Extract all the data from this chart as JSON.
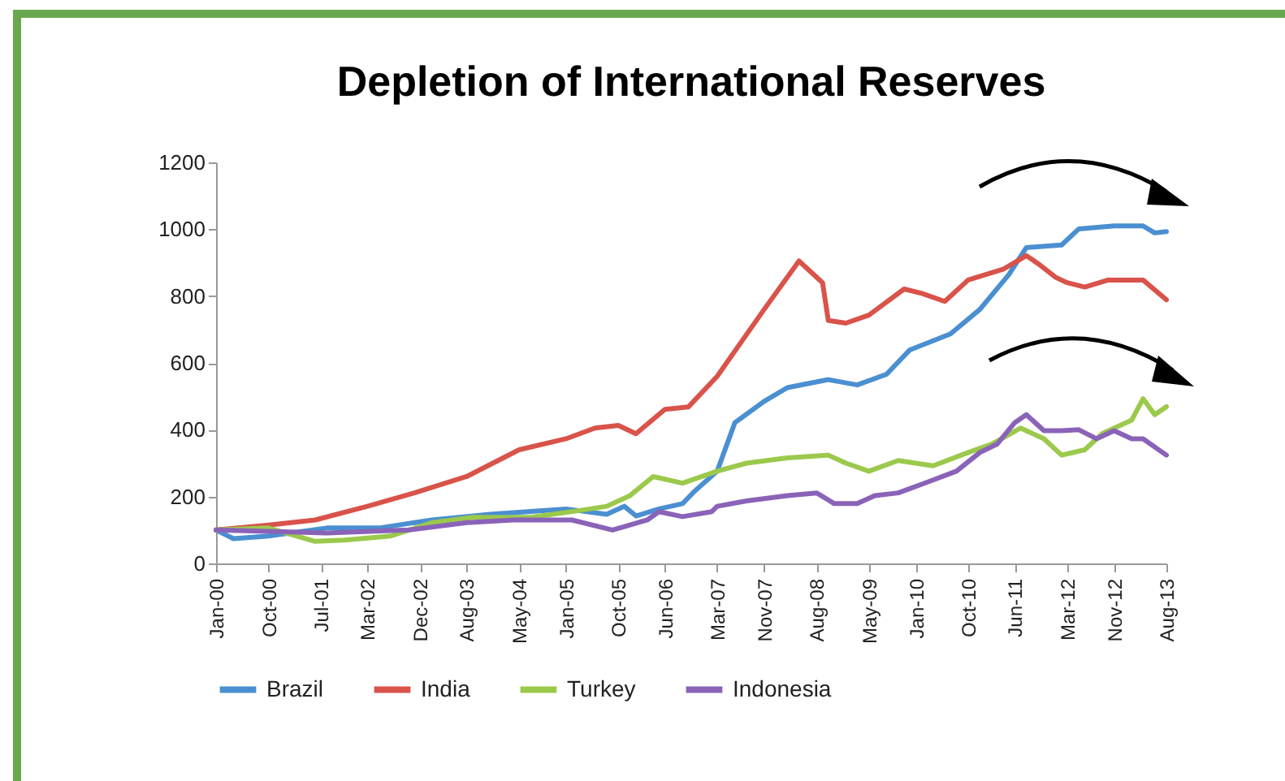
{
  "chart_data": {
    "type": "line",
    "title": "Depletion of International Reserves",
    "xlim": [
      "2000-01",
      "2013-08"
    ],
    "xticks": [
      {
        "value": "2000-01",
        "label": "Jan-00"
      },
      {
        "value": "2000-10",
        "label": "Oct-00"
      },
      {
        "value": "2001-07",
        "label": "Jul-01"
      },
      {
        "value": "2002-03",
        "label": "Mar-02"
      },
      {
        "value": "2002-12",
        "label": "Dec-02"
      },
      {
        "value": "2003-08",
        "label": "Aug-03"
      },
      {
        "value": "2004-05",
        "label": "May-04"
      },
      {
        "value": "2005-01",
        "label": "Jan-05"
      },
      {
        "value": "2005-10",
        "label": "Oct-05"
      },
      {
        "value": "2006-06",
        "label": "Jun-06"
      },
      {
        "value": "2007-03",
        "label": "Mar-07"
      },
      {
        "value": "2007-11",
        "label": "Nov-07"
      },
      {
        "value": "2008-08",
        "label": "Aug-08"
      },
      {
        "value": "2009-05",
        "label": "May-09"
      },
      {
        "value": "2010-01",
        "label": "Jan-10"
      },
      {
        "value": "2010-10",
        "label": "Oct-10"
      },
      {
        "value": "2011-06",
        "label": "Jun-11"
      },
      {
        "value": "2012-03",
        "label": "Mar-12"
      },
      {
        "value": "2012-11",
        "label": "Nov-12"
      },
      {
        "value": "2013-08",
        "label": "Aug-13"
      }
    ],
    "ylim": [
      0,
      1200
    ],
    "yticks": [
      0,
      200,
      400,
      600,
      800,
      1000,
      1200
    ],
    "grid": false,
    "legend": "bottom",
    "marker": "none",
    "line_style": "solid",
    "series": [
      {
        "name": "Brazil",
        "color": "#4a8fd1",
        "x": [
          "2000-01",
          "2000-04",
          "2000-10",
          "2001-08",
          "2002-05",
          "2003-02",
          "2003-12",
          "2005-01",
          "2005-08",
          "2005-11",
          "2006-01",
          "2006-05",
          "2006-09",
          "2006-11",
          "2007-03",
          "2007-06",
          "2007-11",
          "2008-03",
          "2008-10",
          "2009-03",
          "2009-08",
          "2009-12",
          "2010-07",
          "2010-12",
          "2011-05",
          "2011-08",
          "2012-02",
          "2012-05",
          "2012-11",
          "2013-04",
          "2013-06",
          "2013-08"
        ],
        "values": [
          100,
          74,
          82,
          106,
          106,
          130,
          147,
          163,
          147,
          171,
          142,
          163,
          179,
          215,
          276,
          421,
          485,
          526,
          550,
          534,
          566,
          639,
          687,
          760,
          864,
          945,
          953,
          1001,
          1010,
          1010,
          989,
          993
        ]
      },
      {
        "name": "India",
        "color": "#d9534a",
        "x": [
          "2000-01",
          "2000-10",
          "2001-06",
          "2002-03",
          "2002-11",
          "2003-08",
          "2004-05",
          "2005-01",
          "2005-06",
          "2005-10",
          "2006-01",
          "2006-06",
          "2006-10",
          "2007-03",
          "2007-11",
          "2008-05",
          "2008-09",
          "2008-10",
          "2009-01",
          "2009-05",
          "2009-11",
          "2010-02",
          "2010-06",
          "2010-10",
          "2011-04",
          "2011-08",
          "2011-10",
          "2012-01",
          "2012-03",
          "2012-06",
          "2012-10",
          "2013-04",
          "2013-08"
        ],
        "values": [
          100,
          115,
          130,
          171,
          211,
          260,
          340,
          373,
          405,
          413,
          388,
          461,
          468,
          560,
          760,
          905,
          840,
          727,
          719,
          743,
          821,
          808,
          784,
          848,
          880,
          921,
          897,
          856,
          840,
          827,
          848,
          848,
          789
        ]
      },
      {
        "name": "Turkey",
        "color": "#9bc94c",
        "x": [
          "2000-01",
          "2000-10",
          "2001-06",
          "2001-11",
          "2002-07",
          "2003-02",
          "2003-09",
          "2004-07",
          "2005-04",
          "2005-08",
          "2005-12",
          "2006-04",
          "2006-09",
          "2007-03",
          "2007-08",
          "2008-03",
          "2008-10",
          "2009-01",
          "2009-05",
          "2009-10",
          "2010-04",
          "2010-10",
          "2011-02",
          "2011-07",
          "2011-11",
          "2012-02",
          "2012-06",
          "2012-09",
          "2013-02",
          "2013-04",
          "2013-06",
          "2013-08"
        ],
        "values": [
          100,
          106,
          66,
          70,
          82,
          122,
          138,
          138,
          160,
          171,
          203,
          260,
          240,
          276,
          300,
          316,
          324,
          300,
          276,
          308,
          292,
          332,
          357,
          405,
          373,
          324,
          340,
          389,
          429,
          493,
          445,
          469
        ]
      },
      {
        "name": "Indonesia",
        "color": "#8a63b8",
        "x": [
          "2000-01",
          "2001-08",
          "2002-10",
          "2003-08",
          "2004-04",
          "2005-02",
          "2005-09",
          "2006-03",
          "2006-05",
          "2006-09",
          "2007-02",
          "2007-03",
          "2007-08",
          "2008-03",
          "2008-08",
          "2008-11",
          "2009-03",
          "2009-06",
          "2009-10",
          "2010-03",
          "2010-08",
          "2010-12",
          "2011-03",
          "2011-06",
          "2011-08",
          "2011-11",
          "2012-02",
          "2012-05",
          "2012-08",
          "2012-11",
          "2013-02",
          "2013-04",
          "2013-08"
        ],
        "values": [
          100,
          91,
          100,
          122,
          130,
          130,
          100,
          130,
          155,
          140,
          155,
          171,
          187,
          203,
          211,
          179,
          179,
          203,
          211,
          243,
          276,
          332,
          357,
          421,
          445,
          397,
          397,
          400,
          373,
          397,
          373,
          373,
          324
        ]
      }
    ]
  }
}
